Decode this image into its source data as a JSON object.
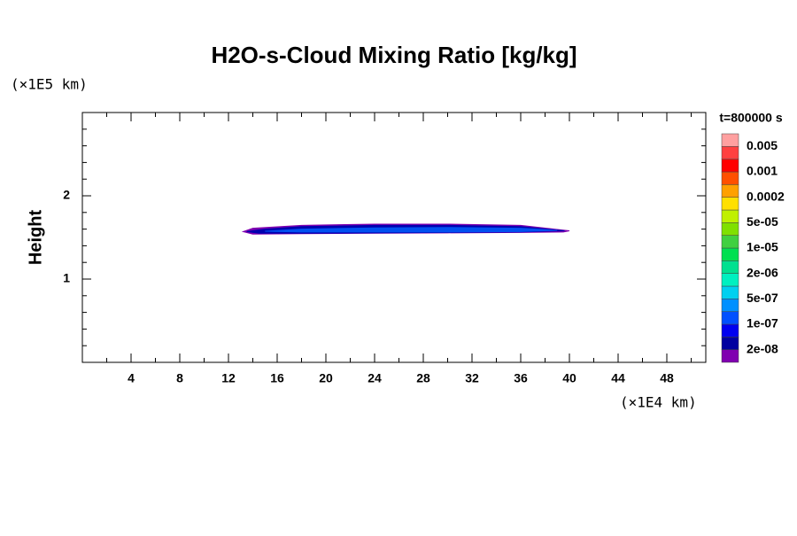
{
  "chart_data": {
    "type": "contour",
    "title": "H2O-s-Cloud Mixing Ratio [kg/kg]",
    "x_label": "(×1E4 km)",
    "y_label": "Height",
    "y_unit_label": "(×1E5 km)",
    "time_label": "t=800000 s",
    "xlim": [
      0,
      51.2
    ],
    "ylim": [
      0,
      3
    ],
    "xticks": [
      4,
      8,
      12,
      16,
      20,
      24,
      28,
      32,
      36,
      40,
      44,
      48
    ],
    "yticks": [
      1,
      2
    ],
    "xminorticks": [
      2,
      6,
      10,
      14,
      18,
      22,
      26,
      30,
      34,
      38,
      42,
      46,
      50
    ],
    "yminorticks": [
      0.2,
      0.4,
      0.6,
      0.8,
      1.2,
      1.4,
      1.6,
      1.8,
      2.2,
      2.4,
      2.6,
      2.8
    ],
    "filled_contours": [
      {
        "color": "#7f00b0",
        "x": [
          13.2,
          14,
          18,
          24,
          30,
          36,
          40,
          39.5,
          36,
          30,
          24,
          18,
          14
        ],
        "y": [
          1.57,
          1.61,
          1.645,
          1.66,
          1.66,
          1.645,
          1.58,
          1.565,
          1.56,
          1.555,
          1.55,
          1.545,
          1.54
        ]
      },
      {
        "color": "#0000b0",
        "x": [
          13.5,
          15,
          18,
          24,
          30,
          36,
          39.6,
          36,
          30,
          24,
          18,
          14.5
        ],
        "y": [
          1.57,
          1.6,
          1.63,
          1.645,
          1.645,
          1.63,
          1.58,
          1.565,
          1.56,
          1.555,
          1.55,
          1.55
        ]
      },
      {
        "color": "#0050f0",
        "x": [
          15,
          18,
          24,
          30,
          36,
          39,
          36,
          30,
          24,
          18
        ],
        "y": [
          1.575,
          1.6,
          1.615,
          1.62,
          1.61,
          1.585,
          1.57,
          1.565,
          1.565,
          1.565
        ]
      }
    ],
    "colorbar": {
      "colors": [
        "#8000b0",
        "#0000a0",
        "#0000f0",
        "#0050ff",
        "#0090ff",
        "#00d0f0",
        "#00f0c0",
        "#00e090",
        "#00e050",
        "#40d040",
        "#80e000",
        "#c0f000",
        "#ffe000",
        "#ffa000",
        "#ff5000",
        "#ff0000",
        "#ff4040",
        "#ffa0a0"
      ],
      "ticks": [
        {
          "value": 2e-08,
          "label": "2e-08"
        },
        {
          "value": 1e-07,
          "label": "1e-07"
        },
        {
          "value": 5e-07,
          "label": "5e-07"
        },
        {
          "value": 2e-06,
          "label": "2e-06"
        },
        {
          "value": 1e-05,
          "label": "1e-05"
        },
        {
          "value": 5e-05,
          "label": "5e-05"
        },
        0.0002,
        0.001,
        0.005
      ]
    }
  }
}
